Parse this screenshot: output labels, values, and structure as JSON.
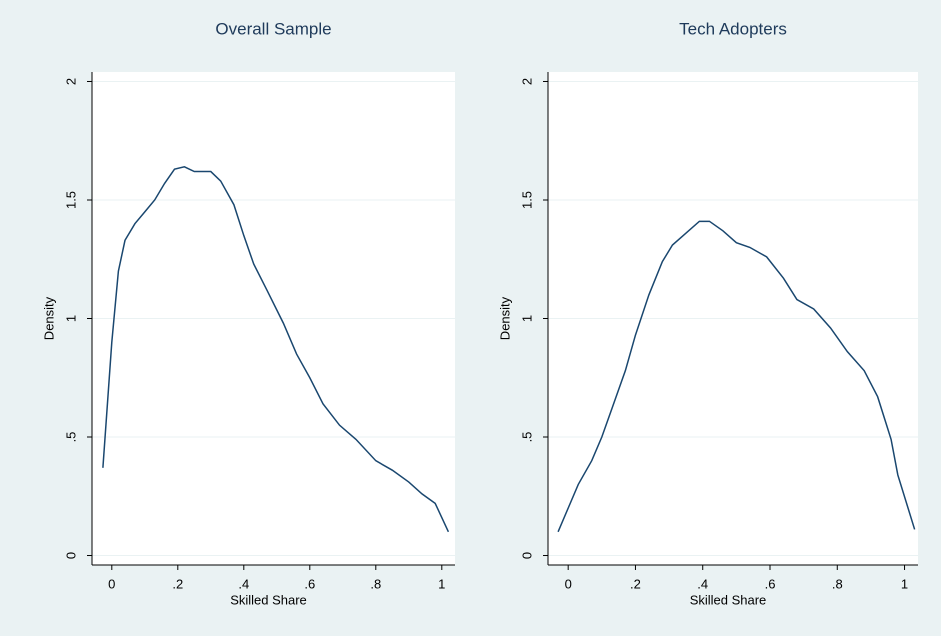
{
  "chart_data": [
    {
      "type": "line",
      "title": "Overall Sample",
      "xlabel": "Skilled Share",
      "ylabel": "Density",
      "color": "#1a476f",
      "grid": true,
      "xlim": [
        -0.06,
        1.04
      ],
      "ylim": [
        -0.04,
        2.04
      ],
      "xticks": [
        0,
        {
          "value": 0.2,
          "label": ".2"
        },
        {
          "value": 0.4,
          "label": ".4"
        },
        {
          "value": 0.6,
          "label": ".6"
        },
        {
          "value": 0.8,
          "label": ".8"
        },
        1
      ],
      "yticks": [
        0,
        {
          "value": 0.5,
          "label": ".5"
        },
        1,
        1.5,
        2
      ],
      "x": [
        -0.027,
        0,
        0.02,
        0.04,
        0.07,
        0.1,
        0.13,
        0.16,
        0.19,
        0.22,
        0.25,
        0.3,
        0.33,
        0.37,
        0.4,
        0.43,
        0.47,
        0.52,
        0.56,
        0.6,
        0.64,
        0.69,
        0.74,
        0.8,
        0.85,
        0.9,
        0.94,
        0.98,
        1.02
      ],
      "values": [
        0.37,
        0.9,
        1.2,
        1.33,
        1.4,
        1.45,
        1.5,
        1.57,
        1.63,
        1.64,
        1.62,
        1.62,
        1.58,
        1.48,
        1.35,
        1.23,
        1.12,
        0.98,
        0.85,
        0.75,
        0.64,
        0.55,
        0.49,
        0.4,
        0.36,
        0.31,
        0.26,
        0.22,
        0.1
      ]
    },
    {
      "type": "line",
      "title": "Tech Adopters",
      "xlabel": "Skilled Share",
      "ylabel": "Density",
      "color": "#1a476f",
      "grid": true,
      "xlim": [
        -0.06,
        1.04
      ],
      "ylim": [
        -0.04,
        2.04
      ],
      "xticks": [
        0,
        {
          "value": 0.2,
          "label": ".2"
        },
        {
          "value": 0.4,
          "label": ".4"
        },
        {
          "value": 0.6,
          "label": ".6"
        },
        {
          "value": 0.8,
          "label": ".8"
        },
        1
      ],
      "yticks": [
        0,
        {
          "value": 0.5,
          "label": ".5"
        },
        1,
        1.5,
        2
      ],
      "x": [
        -0.03,
        0,
        0.03,
        0.07,
        0.1,
        0.13,
        0.17,
        0.2,
        0.24,
        0.28,
        0.31,
        0.35,
        0.39,
        0.42,
        0.46,
        0.5,
        0.54,
        0.59,
        0.64,
        0.68,
        0.73,
        0.78,
        0.83,
        0.88,
        0.92,
        0.96,
        0.98,
        1.03
      ],
      "values": [
        0.1,
        0.2,
        0.3,
        0.4,
        0.5,
        0.62,
        0.78,
        0.93,
        1.1,
        1.24,
        1.31,
        1.36,
        1.41,
        1.41,
        1.37,
        1.32,
        1.3,
        1.26,
        1.17,
        1.08,
        1.04,
        0.96,
        0.86,
        0.78,
        0.67,
        0.49,
        0.34,
        0.11
      ]
    }
  ]
}
